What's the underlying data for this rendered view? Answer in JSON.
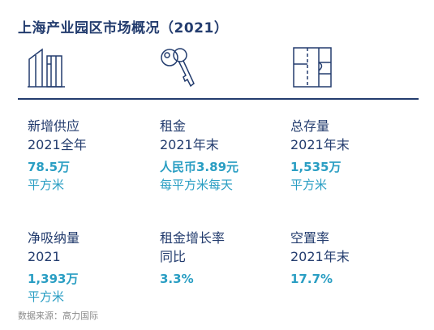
{
  "title": "上海产业园区市场概况（2021）",
  "icons": [
    "building-icon",
    "key-icon",
    "floor-plan-icon"
  ],
  "stats": [
    {
      "label_line1": "新增供应",
      "label_line2": "2021全年",
      "value": "78.5万",
      "unit": "平方米"
    },
    {
      "label_line1": "租金",
      "label_line2": "2021年末",
      "value": "人民币3.89元",
      "unit": "每平方米每天"
    },
    {
      "label_line1": "总存量",
      "label_line2": "2021年末",
      "value": "1,535万",
      "unit": "平方米"
    },
    {
      "label_line1": "净吸纳量",
      "label_line2": "2021",
      "value": "1,393万",
      "unit": "平方米"
    },
    {
      "label_line1": "租金增长率",
      "label_line2": "同比",
      "value": "3.3%",
      "unit": ""
    },
    {
      "label_line1": "空置率",
      "label_line2": "2021年末",
      "value": "17.7%",
      "unit": ""
    }
  ],
  "source": "数据来源：高力国际",
  "colors": {
    "primary": "#233c6e",
    "accent": "#2a9ec3",
    "source": "#8a8a8a"
  }
}
